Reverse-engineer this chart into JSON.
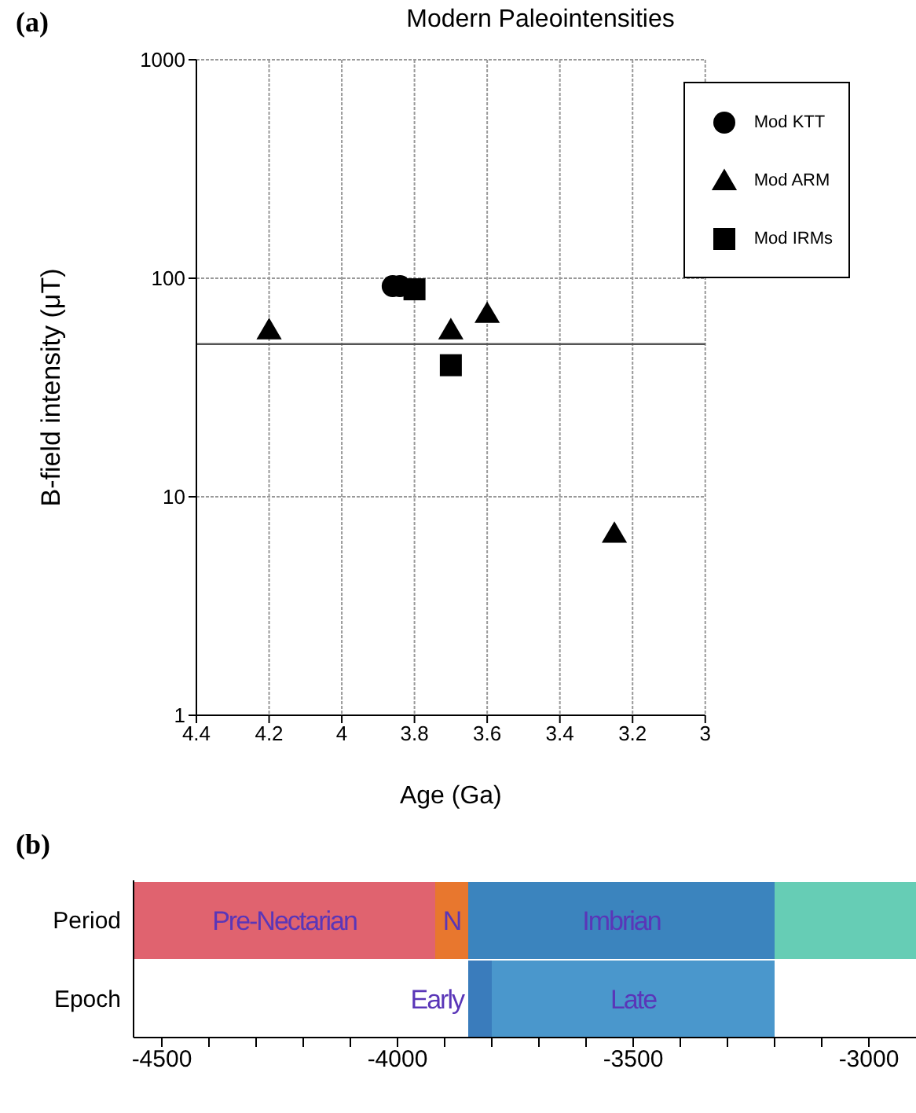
{
  "chart_data": [
    {
      "type": "scatter",
      "title": "Modern Paleointensities",
      "xlabel": "Age (Ga)",
      "ylabel": "B-field intensity (μT)",
      "annotations": [
        "(a)"
      ],
      "xlim": [
        4.4,
        3
      ],
      "xticks": [
        4.4,
        4.2,
        4,
        3.8,
        3.6,
        3.4,
        3.2,
        3
      ],
      "ylim": [
        1,
        1000
      ],
      "yticks": [
        1,
        10,
        100,
        1000
      ],
      "log": "y",
      "grid": true,
      "legend": "top right",
      "ref_lines": [
        {
          "axis": "y",
          "value": 50,
          "color": "#555555"
        }
      ],
      "series": [
        {
          "name": "Mod KTT",
          "color": "#000000",
          "marker": "circle",
          "x": [
            3.86,
            3.84
          ],
          "values": [
            92,
            92
          ]
        },
        {
          "name": "Mod ARM",
          "color": "#000000",
          "marker": "triangle",
          "x": [
            4.2,
            3.7,
            3.6,
            3.25
          ],
          "values": [
            58,
            58,
            69,
            6.8
          ]
        },
        {
          "name": "Mod IRMs",
          "color": "#000000",
          "marker": "square",
          "x": [
            3.8,
            3.7
          ],
          "values": [
            89,
            40
          ]
        }
      ]
    },
    {
      "type": "bar",
      "orientation": "horizontal",
      "annotations": [
        "(b)"
      ],
      "categories": [
        "Period",
        "Epoch"
      ],
      "xlim": [
        -4560,
        -2900
      ],
      "xticks": [
        -4500,
        {
          "value": -4400,
          "label": null
        },
        {
          "value": -4300,
          "label": null
        },
        {
          "value": -4200,
          "label": null
        },
        {
          "value": -4100,
          "label": null
        },
        -4000,
        {
          "value": -3900,
          "label": null
        },
        {
          "value": -3800,
          "label": null
        },
        {
          "value": -3700,
          "label": null
        },
        {
          "value": -3600,
          "label": null
        },
        -3500,
        {
          "value": -3400,
          "label": null
        },
        {
          "value": -3300,
          "label": null
        },
        {
          "value": -3200,
          "label": null
        },
        {
          "value": -3100,
          "label": null
        },
        -3000
      ],
      "series": [
        {
          "name": "Pre-Nectarian",
          "color": "#e0636f",
          "base": [
            -4560,
            null
          ],
          "values": [
            640,
            null
          ]
        },
        {
          "name": "N",
          "color": "#e8772e",
          "base": [
            -3920,
            null
          ],
          "values": [
            70,
            null
          ]
        },
        {
          "name": "Imbrian",
          "color": "#3b84be",
          "base": [
            -3850,
            null
          ],
          "values": [
            650,
            null
          ]
        },
        {
          "color": "#66cdb5",
          "base": [
            -3200,
            null
          ],
          "values": [
            300,
            null
          ]
        },
        {
          "name": "Early",
          "color": "#3a7cbc",
          "base": [
            null,
            -3850
          ],
          "values": [
            null,
            50
          ]
        },
        {
          "name": "Late",
          "color": "#4a97cc",
          "base": [
            null,
            -3800
          ],
          "values": [
            null,
            600
          ]
        }
      ]
    }
  ]
}
